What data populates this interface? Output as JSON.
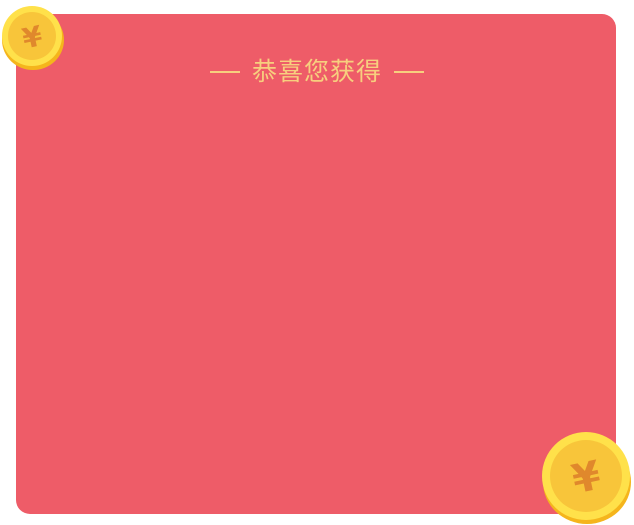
{
  "heading": {
    "title": "恭喜您获得",
    "decoration_left": "—",
    "decoration_right": "—"
  },
  "coins": {
    "small": {
      "symbol": "¥",
      "icon": "coin-icon"
    },
    "large": {
      "symbol": "¥",
      "icon": "coin-icon"
    }
  },
  "colors": {
    "card_background": "#ee5c68",
    "heading_text": "#f7cf7e",
    "coin_face": "#f8c53a",
    "coin_edge": "#ffe14a",
    "coin_symbol": "#e0882c"
  }
}
